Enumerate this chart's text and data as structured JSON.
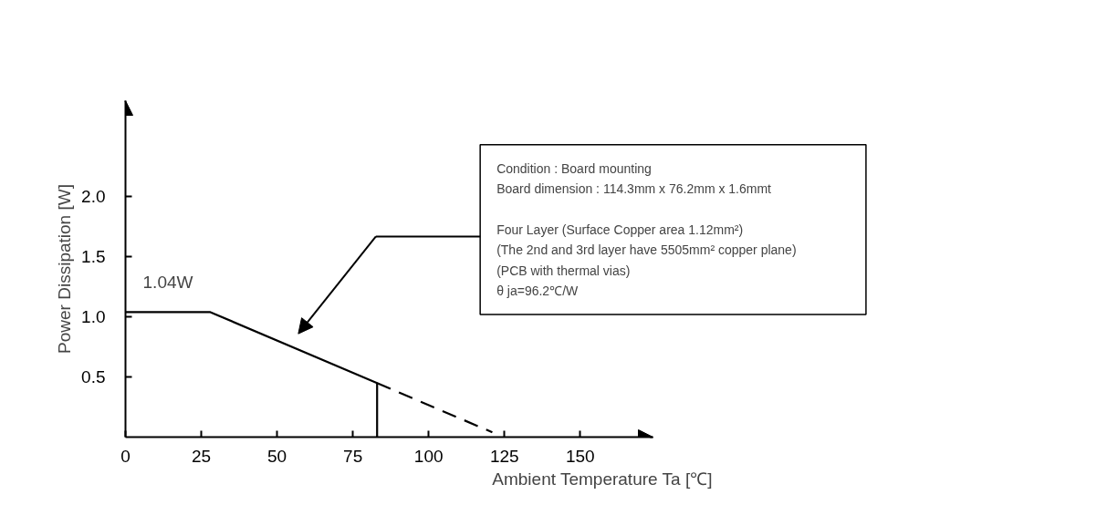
{
  "chart_data": {
    "type": "line",
    "xlabel": "Ambient Temperature   Ta [℃]",
    "ylabel": "Power Dissipation [W]",
    "series": [
      {
        "color": "#000000",
        "line_style": "solid",
        "x": [
          0,
          28,
          83,
          83
        ],
        "values": [
          1.04,
          1.04,
          0.45,
          0
        ]
      },
      {
        "color": "#000000",
        "line_style": "dashed",
        "x": [
          83,
          121
        ],
        "values": [
          0.45,
          0.04
        ]
      }
    ],
    "xlim": [
      0,
      174
    ],
    "ylim": [
      0,
      2.8
    ],
    "xticks": [
      0,
      25,
      50,
      75,
      100,
      125,
      150
    ],
    "yticks": [
      {
        "value": 0.5,
        "label": "0.5"
      },
      {
        "value": 1.0,
        "label": "1.0"
      },
      {
        "value": 1.5,
        "label": "1.5"
      },
      {
        "value": 2.0,
        "label": "2.0"
      }
    ],
    "grid": false,
    "marker": "none",
    "annotations": [
      {
        "text": "1.04W",
        "x": 14,
        "y": 1.04
      },
      "Condition                      : Board mounting\nBoard dimension        : 114.3mm x 76.2mm x 1.6mmt\n\nFour Layer (Surface Copper area 1.12mm²)\n               (The 2nd and 3rd layer have 5505mm² copper plane)\n             (PCB with thermal vias)\nθ ja=96.2℃/W"
    ]
  }
}
